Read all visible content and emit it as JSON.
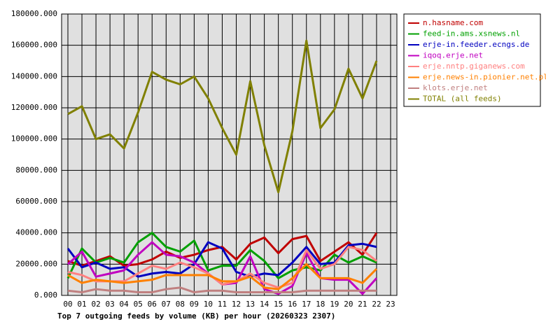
{
  "chart_data": {
    "type": "line",
    "title": "Top 7 outgoing feeds by volume (KB) per hour (20260323 2307)",
    "categories": [
      "00",
      "01",
      "02",
      "03",
      "04",
      "05",
      "06",
      "07",
      "08",
      "09",
      "10",
      "11",
      "12",
      "13",
      "14",
      "15",
      "16",
      "17",
      "18",
      "19",
      "20",
      "21",
      "22",
      "23"
    ],
    "series": [
      {
        "name": "n.hasname.com",
        "color": "#c00000",
        "values": [
          22000,
          19000,
          22000,
          25000,
          19000,
          20000,
          23000,
          28000,
          24000,
          26000,
          29000,
          31000,
          23000,
          33000,
          37000,
          27000,
          36000,
          38000,
          22000,
          28000,
          34000,
          26000,
          40000,
          null
        ]
      },
      {
        "name": "feed-in.ams.xsnews.nl",
        "color": "#00a000",
        "values": [
          11000,
          30000,
          21000,
          24000,
          21000,
          34000,
          40000,
          31000,
          28000,
          35000,
          16000,
          19000,
          19000,
          29000,
          22000,
          11000,
          16000,
          18000,
          16000,
          26000,
          21000,
          25000,
          21000,
          null
        ]
      },
      {
        "name": "erje-in.feeder.ecngs.de",
        "color": "#0000c0",
        "values": [
          30000,
          18000,
          21000,
          17000,
          18000,
          12000,
          14000,
          15000,
          14000,
          20000,
          34000,
          30000,
          15000,
          12000,
          14000,
          13000,
          21000,
          31000,
          20000,
          21000,
          32000,
          33000,
          31000,
          null
        ]
      },
      {
        "name": "iqoq.erje.net",
        "color": "#c000c0",
        "values": [
          20000,
          28000,
          12000,
          14000,
          16000,
          26000,
          34000,
          26000,
          25000,
          21000,
          14000,
          7000,
          8000,
          25000,
          4000,
          1000,
          6000,
          27000,
          11000,
          10000,
          10000,
          1000,
          11000,
          null
        ]
      },
      {
        "name": "erje.nntp.giganews.com",
        "color": "#ff8080",
        "values": [
          15000,
          13000,
          9000,
          9000,
          9000,
          14000,
          19000,
          17000,
          21000,
          18000,
          14000,
          7000,
          9000,
          14000,
          8000,
          5000,
          8000,
          29000,
          17000,
          20000,
          31000,
          29000,
          22000,
          null
        ]
      },
      {
        "name": "erje.news-in.pionier.net.pl",
        "color": "#ff8000",
        "values": [
          13000,
          8000,
          10000,
          9000,
          8000,
          9000,
          10000,
          13000,
          13000,
          13000,
          13000,
          9000,
          9000,
          12000,
          5000,
          4000,
          11000,
          20000,
          11000,
          11000,
          11000,
          8000,
          17000,
          null
        ]
      },
      {
        "name": "klots.erje.net",
        "color": "#c08080",
        "values": [
          3000,
          2000,
          4000,
          3000,
          3000,
          2000,
          2000,
          4000,
          5000,
          2000,
          3000,
          3000,
          2000,
          2000,
          2000,
          2000,
          2000,
          3000,
          3000,
          3000,
          3000,
          3000,
          3000,
          null
        ]
      },
      {
        "name": "TOTAL (all feeds)",
        "color": "#808000",
        "values": [
          116000,
          121000,
          100000,
          103000,
          94000,
          117000,
          143000,
          138000,
          135000,
          140000,
          126000,
          107000,
          90000,
          137000,
          96000,
          66000,
          105000,
          163000,
          107000,
          119000,
          145000,
          126000,
          150000,
          null
        ]
      }
    ],
    "ylim": [
      0,
      180000
    ],
    "yticks": [
      {
        "value": 0,
        "label": "0.000"
      },
      {
        "value": 20000,
        "label": "20000.000"
      },
      {
        "value": 40000,
        "label": "40000.000"
      },
      {
        "value": 60000,
        "label": "60000.000"
      },
      {
        "value": 80000,
        "label": "80000.000"
      },
      {
        "value": 100000,
        "label": "100000.000"
      },
      {
        "value": 120000,
        "label": "120000.000"
      },
      {
        "value": 140000,
        "label": "140000.000"
      },
      {
        "value": 160000,
        "label": "160000.000"
      },
      {
        "value": 180000,
        "label": "180000.000"
      }
    ],
    "grid": true,
    "legend": "right"
  }
}
